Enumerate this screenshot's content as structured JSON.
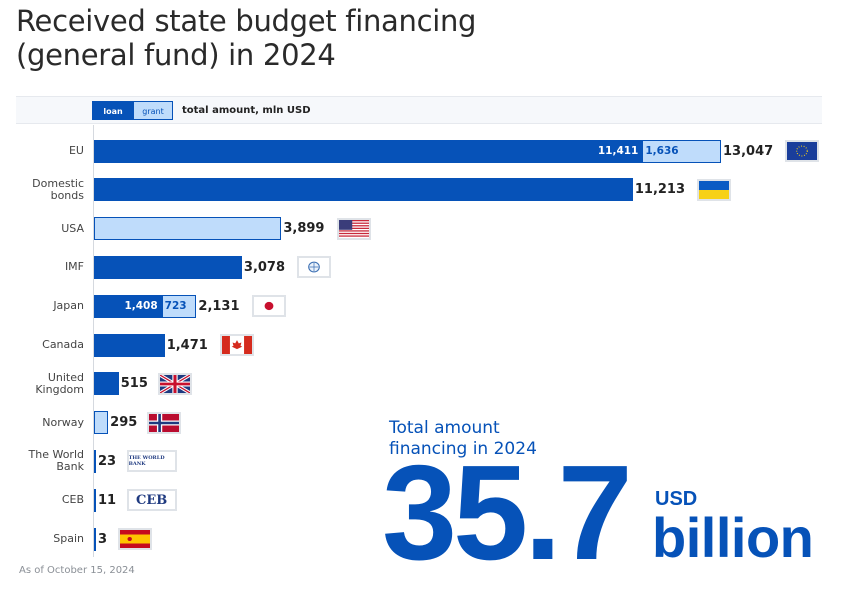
{
  "title": "Received state budget financing\n(general fund) in 2024",
  "colors": {
    "loan": "#0652b8",
    "grant": "#bfdcfb",
    "text": "#222222"
  },
  "legend": {
    "loan": "loan",
    "grant": "grant",
    "total": "total amount, mln USD"
  },
  "chart_data": {
    "type": "bar",
    "orientation": "horizontal",
    "stacked": true,
    "unit": "mln USD",
    "categories": [
      "EU",
      "Domestic\nbonds",
      "USA",
      "IMF",
      "Japan",
      "Canada",
      "United\nKingdom",
      "Norway",
      "The World\nBank",
      "CEB",
      "Spain"
    ],
    "series": [
      {
        "name": "loan",
        "values": [
          11411,
          11213,
          0,
          3078,
          1408,
          1471,
          515,
          0,
          23,
          11,
          3
        ]
      },
      {
        "name": "grant",
        "values": [
          1636,
          0,
          3899,
          0,
          723,
          0,
          0,
          295,
          0,
          0,
          0
        ]
      }
    ],
    "totals": [
      "13,047",
      "11,213",
      "3,899",
      "3,078",
      "2,131",
      "1,471",
      "515",
      "295",
      "23",
      "11",
      "3"
    ],
    "segment_labels": [
      [
        "11,411",
        "1,636"
      ],
      null,
      null,
      null,
      [
        "1,408",
        "723"
      ],
      null,
      null,
      null,
      null,
      null,
      null
    ],
    "flags": [
      "eu",
      "ukraine",
      "usa",
      "imf",
      "japan",
      "canada",
      "uk",
      "norway",
      "worldbank",
      "ceb",
      "spain"
    ],
    "xlim": [
      0,
      13047
    ],
    "grid": false
  },
  "logo_text": {
    "worldbank": "THE WORLD BANK",
    "ceb": "CEB"
  },
  "footnote": "As of October 15, 2024",
  "summary": {
    "label": "Total amount\nfinancing in 2024",
    "value": "35.7",
    "unit_top": "USD",
    "unit_bottom": "billion"
  }
}
